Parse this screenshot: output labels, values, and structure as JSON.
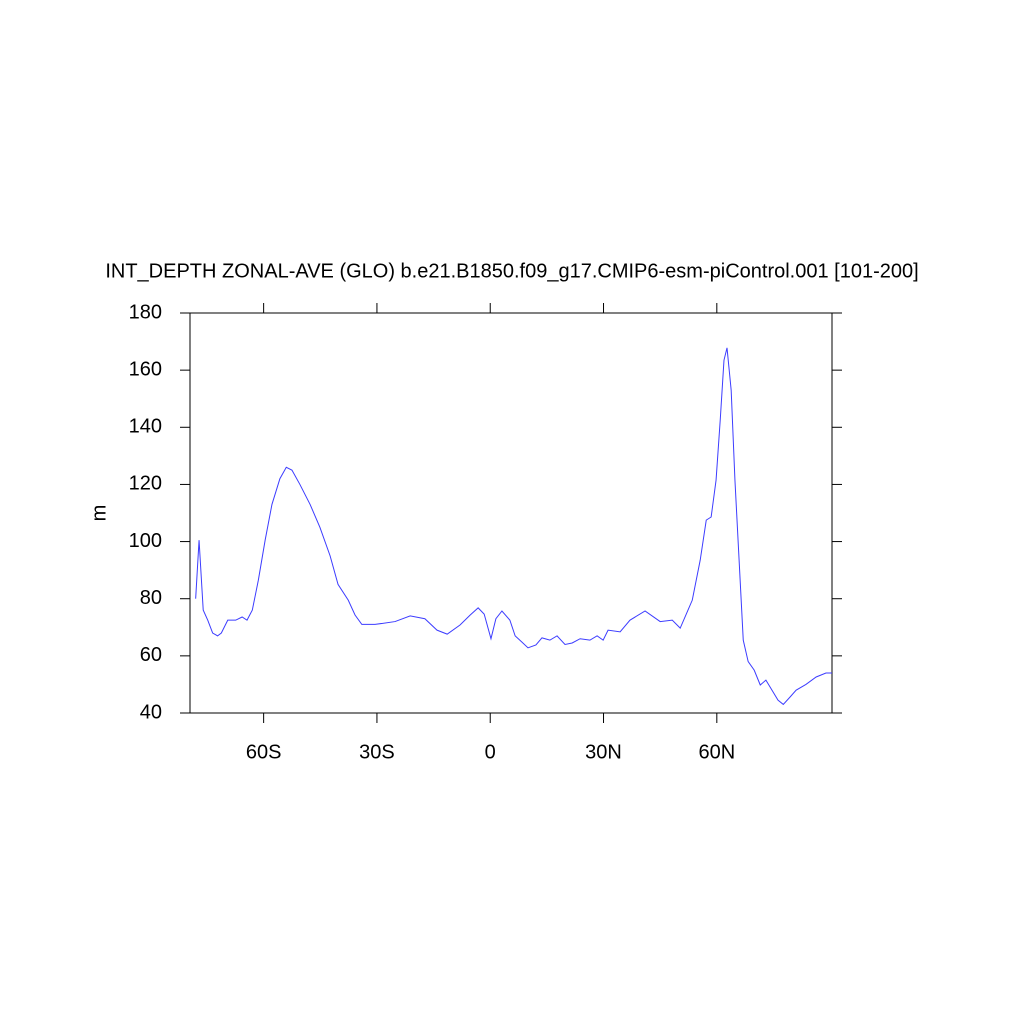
{
  "chart_data": {
    "type": "line",
    "title": "INT_DEPTH ZONAL-AVE (GLO) b.e21.B1850.f09_g17.CMIP6-esm-piControl.001 [101-200]",
    "y_label": "m",
    "x": [
      -78,
      -77.1,
      -76,
      -74.8,
      -73.5,
      -72.2,
      -71.2,
      -69.5,
      -67.4,
      -65.7,
      -64.4,
      -63,
      -61.4,
      -59.6,
      -57.8,
      -55.7,
      -54,
      -52.5,
      -50.4,
      -47.7,
      -45.1,
      -42.4,
      -40.3,
      -37.6,
      -35.8,
      -34,
      -30.5,
      -25.2,
      -21.2,
      -17.3,
      -14.1,
      -11.4,
      -8,
      -5.3,
      -3.2,
      -1.6,
      0.2,
      1.5,
      3.1,
      5.2,
      6.6,
      8.4,
      10,
      12.1,
      13.7,
      15.8,
      17.7,
      19.8,
      21.7,
      23.8,
      26.4,
      28.3,
      29.9,
      31.2,
      34.4,
      37,
      41,
      45,
      48.2,
      50.3,
      51.9,
      53.5,
      55.6,
      57.2,
      58.5,
      59.8,
      60.9,
      61.9,
      62.7,
      63.8,
      64.8,
      65.9,
      67,
      68.3,
      69.9,
      71.5,
      73,
      74.6,
      76.2,
      77.6,
      79.4,
      81,
      83.6,
      86.3,
      88.9,
      90.5
    ],
    "series": [
      {
        "name": "INT_DEPTH",
        "color": "#3c3cff",
        "values": [
          80,
          100.5,
          76,
          72.5,
          68,
          67,
          68,
          72.5,
          72.5,
          73.6,
          72.5,
          76,
          86.5,
          100.5,
          113,
          122,
          126,
          125,
          120,
          113,
          105,
          95,
          85,
          79.5,
          74.3,
          71,
          71,
          72,
          74,
          73,
          69,
          67.6,
          70.8,
          74.3,
          76.8,
          74.6,
          66,
          73,
          75.7,
          72.5,
          67,
          64.8,
          62.8,
          63.8,
          66.3,
          65.5,
          67,
          64,
          64.5,
          66,
          65.5,
          67,
          65.5,
          69,
          68.4,
          72.5,
          75.7,
          72,
          72.5,
          69.7,
          74.6,
          79.5,
          93.5,
          107.5,
          108.6,
          121.5,
          142.5,
          163.5,
          167.8,
          153,
          121.5,
          93.5,
          65.5,
          58,
          55,
          49.8,
          51.5,
          48,
          44.5,
          43,
          45.6,
          48,
          50,
          52.6,
          54,
          54
        ]
      }
    ],
    "xlim": [
      -79.5,
      90.5
    ],
    "xticks": [
      {
        "value": -60,
        "label": "60S"
      },
      {
        "value": -30,
        "label": "30S"
      },
      0,
      {
        "value": 30,
        "label": "30N"
      },
      {
        "value": 60,
        "label": "60N"
      }
    ],
    "ylim": [
      40,
      180
    ],
    "yticks": [
      40,
      60,
      80,
      100,
      120,
      140,
      160,
      180
    ]
  }
}
